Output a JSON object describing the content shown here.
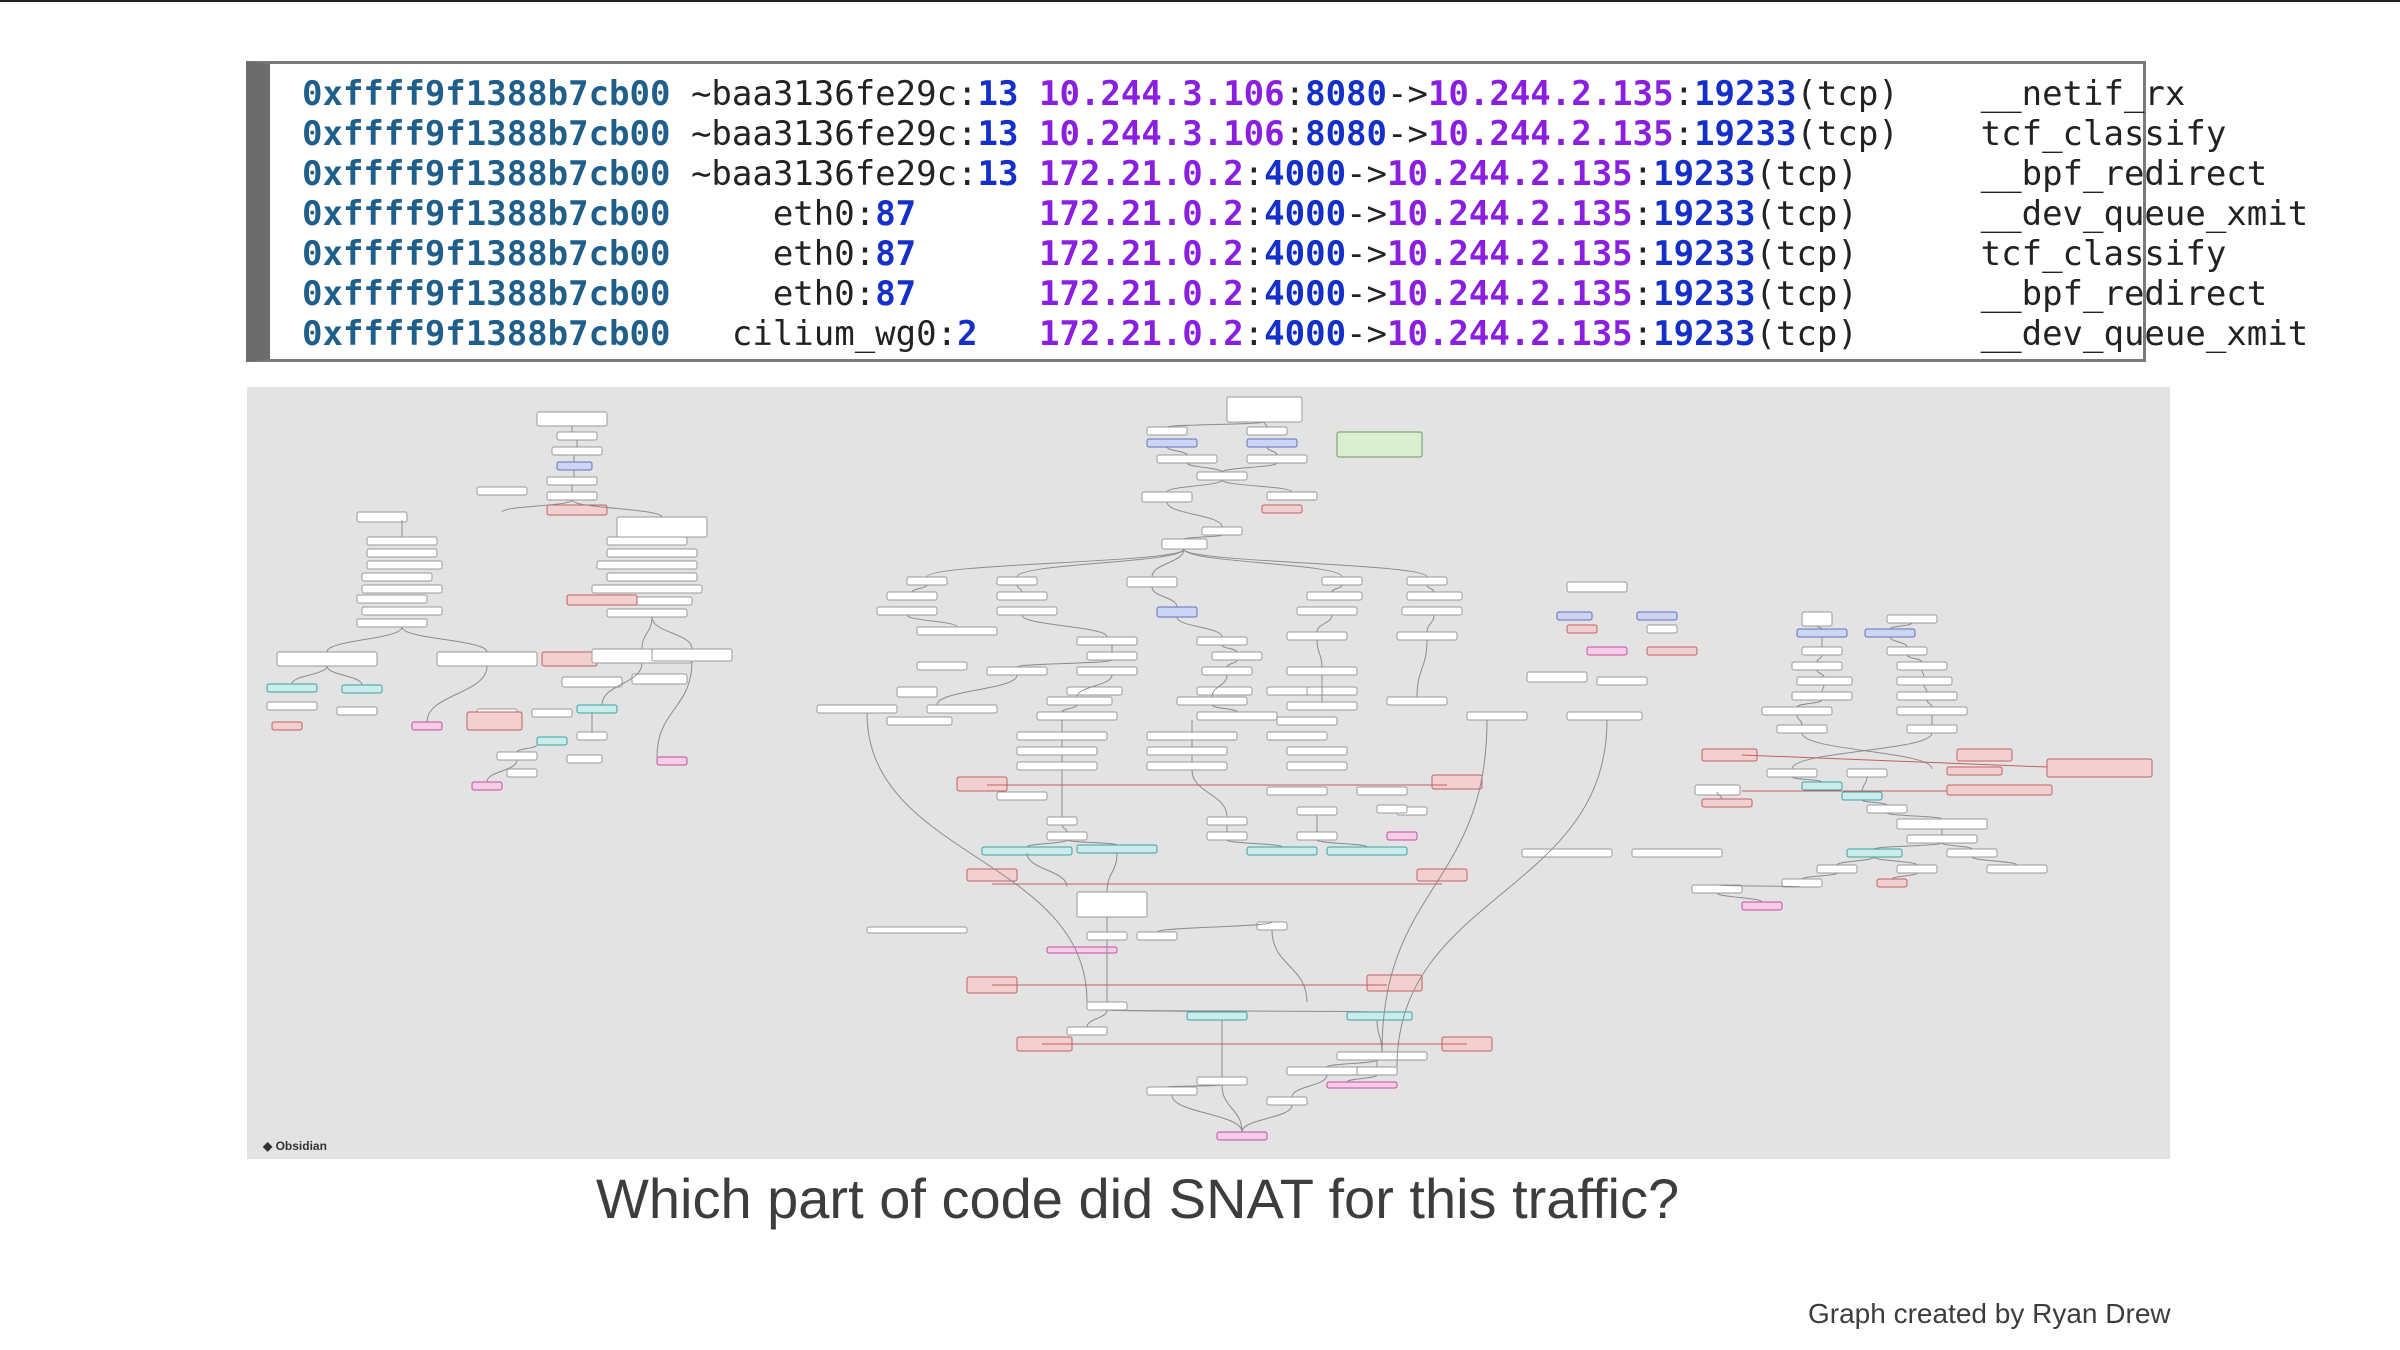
{
  "trace": {
    "rows": [
      {
        "addr": "0xffff9f1388b7cb00",
        "dev_pre": "~baa3136fe29c:",
        "dev_num": "13",
        "src_ip": "10.244.3.106",
        "src_port": "8080",
        "dst_ip": "10.244.2.135",
        "dst_port": "19233",
        "proto": "(tcp)",
        "func": "__netif_rx"
      },
      {
        "addr": "0xffff9f1388b7cb00",
        "dev_pre": "~baa3136fe29c:",
        "dev_num": "13",
        "src_ip": "10.244.3.106",
        "src_port": "8080",
        "dst_ip": "10.244.2.135",
        "dst_port": "19233",
        "proto": "(tcp)",
        "func": "tcf_classify"
      },
      {
        "addr": "0xffff9f1388b7cb00",
        "dev_pre": "~baa3136fe29c:",
        "dev_num": "13",
        "src_ip": "172.21.0.2",
        "src_port": "4000",
        "dst_ip": "10.244.2.135",
        "dst_port": "19233",
        "proto": "(tcp)",
        "func": "__bpf_redirect"
      },
      {
        "addr": "0xffff9f1388b7cb00",
        "dev_pre": "eth0:",
        "dev_num": "87",
        "src_ip": "172.21.0.2",
        "src_port": "4000",
        "dst_ip": "10.244.2.135",
        "dst_port": "19233",
        "proto": "(tcp)",
        "func": "__dev_queue_xmit"
      },
      {
        "addr": "0xffff9f1388b7cb00",
        "dev_pre": "eth0:",
        "dev_num": "87",
        "src_ip": "172.21.0.2",
        "src_port": "4000",
        "dst_ip": "10.244.2.135",
        "dst_port": "19233",
        "proto": "(tcp)",
        "func": "tcf_classify"
      },
      {
        "addr": "0xffff9f1388b7cb00",
        "dev_pre": "eth0:",
        "dev_num": "87",
        "src_ip": "172.21.0.2",
        "src_port": "4000",
        "dst_ip": "10.244.2.135",
        "dst_port": "19233",
        "proto": "(tcp)",
        "func": "__bpf_redirect"
      },
      {
        "addr": "0xffff9f1388b7cb00",
        "dev_pre": "cilium_wg0:",
        "dev_num": "2",
        "src_ip": "172.21.0.2",
        "src_port": "4000",
        "dst_ip": "10.244.2.135",
        "dst_port": "19233",
        "proto": "(tcp)",
        "func": "__dev_queue_xmit"
      }
    ],
    "colors": {
      "addr": "#1f5f8a",
      "ip": "#8a1fe0",
      "port": "#1530c9"
    }
  },
  "graph": {
    "watermark": "Obsidian",
    "node_colors": {
      "plain": "#ffffff",
      "red": "#f3d0d0",
      "blue": "#cdd5f5",
      "cyan": "#c9ecec",
      "green": "#dbeed2",
      "pink": "#f6cce6"
    }
  },
  "question": "Which part of code did SNAT for this traffic?",
  "credit": "Graph created by Ryan Drew"
}
